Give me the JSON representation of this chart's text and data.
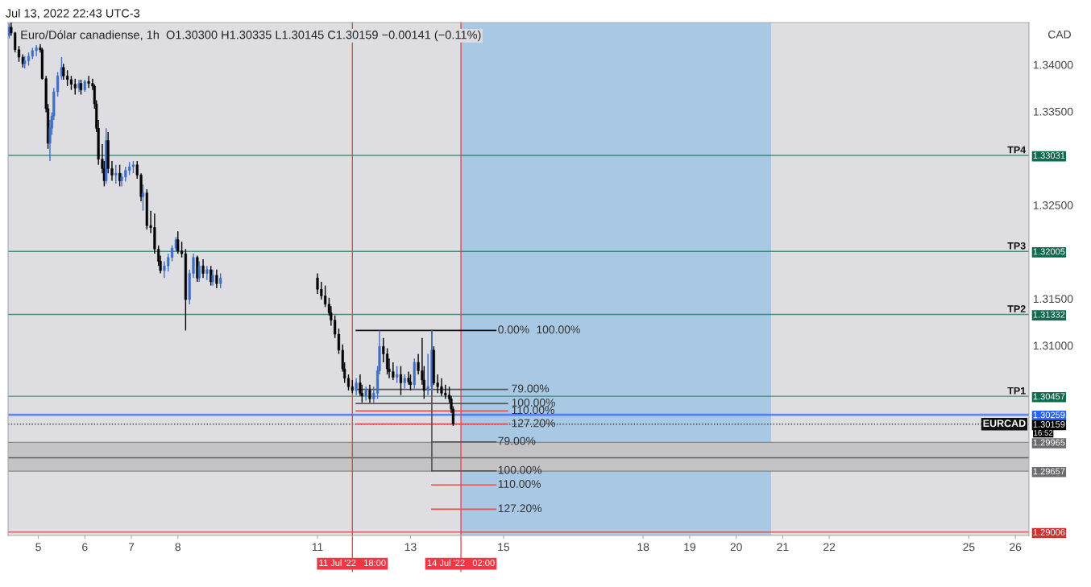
{
  "chart_data": {
    "type": "candlestick",
    "title": "Euro/Dólar canadiense, 1h",
    "subtitle": "O1.30300 H1.30335 L1.30145 C1.30159 −0.00141 (−0.11%)",
    "ylabel": "CAD",
    "xlim": [
      "2022-07-04T08:24",
      "2022-07-26T07:00"
    ],
    "ylim": [
      1.2897,
      1.3445
    ],
    "xticks": [
      {
        "value": "2022-07-05",
        "label": "5"
      },
      {
        "value": "2022-07-06",
        "label": "6"
      },
      {
        "value": "2022-07-07",
        "label": "7"
      },
      {
        "value": "2022-07-08",
        "label": "8"
      },
      {
        "value": "2022-07-11",
        "label": "11"
      },
      {
        "value": "2022-07-13",
        "label": "13"
      },
      {
        "value": "2022-07-15",
        "label": "15"
      },
      {
        "value": "2022-07-18",
        "label": "18"
      },
      {
        "value": "2022-07-19",
        "label": "19"
      },
      {
        "value": "2022-07-20",
        "label": "20"
      },
      {
        "value": "2022-07-21",
        "label": "21"
      },
      {
        "value": "2022-07-22",
        "label": "22"
      },
      {
        "value": "2022-07-25",
        "label": "25"
      },
      {
        "value": "2022-07-26",
        "label": "26"
      }
    ],
    "yticks": [
      {
        "value": 1.33031,
        "label": "1.33031"
      },
      {
        "value": 1.32005,
        "label": "1.32005"
      },
      {
        "value": 1.31332,
        "label": "1.31332"
      },
      {
        "value": 1.30457,
        "label": "1.30457"
      },
      {
        "value": 1.30259,
        "label": "1.30259"
      },
      {
        "value": 1.30159,
        "label": "1.30159"
      },
      {
        "value": 1.29965,
        "label": "1.29965"
      },
      {
        "value": 1.29657,
        "label": "1.29657"
      },
      {
        "value": 1.29006,
        "label": "1.29006"
      },
      {
        "value": 1.31,
        "label": "1.31000"
      },
      {
        "value": 1.315,
        "label": "1.31500"
      },
      {
        "value": 1.325,
        "label": "1.32500"
      },
      {
        "value": 1.335,
        "label": "1.33500"
      },
      {
        "value": 1.34,
        "label": "1.34000"
      }
    ],
    "grid": false,
    "x": [
      "2022-07-04T09:00",
      "2022-07-04T10:00",
      "2022-07-04T12:00",
      "2022-07-04T14:00",
      "2022-07-04T16:00",
      "2022-07-04T17:00",
      "2022-07-04T19:00",
      "2022-07-04T21:00",
      "2022-07-04T23:00",
      "2022-07-05T01:00",
      "2022-07-05T02:00",
      "2022-07-05T04:00",
      "2022-07-05T05:00",
      "2022-07-05T06:00",
      "2022-07-05T07:00",
      "2022-07-05T08:00",
      "2022-07-05T10:00",
      "2022-07-05T12:00",
      "2022-07-05T13:00",
      "2022-07-05T15:00",
      "2022-07-05T17:00",
      "2022-07-05T19:00",
      "2022-07-05T21:00",
      "2022-07-05T22:00",
      "2022-07-06T00:00",
      "2022-07-06T02:00",
      "2022-07-06T04:00",
      "2022-07-06T05:00",
      "2022-07-06T06:00",
      "2022-07-06T07:00",
      "2022-07-06T09:00",
      "2022-07-06T10:00",
      "2022-07-06T11:00",
      "2022-07-06T12:00",
      "2022-07-06T14:00",
      "2022-07-06T16:00",
      "2022-07-06T18:00",
      "2022-07-06T19:00",
      "2022-07-06T21:00",
      "2022-07-06T23:00",
      "2022-07-07T01:00",
      "2022-07-07T03:00",
      "2022-07-07T05:00",
      "2022-07-07T06:00",
      "2022-07-07T08:00",
      "2022-07-07T10:00",
      "2022-07-07T12:00",
      "2022-07-07T14:00",
      "2022-07-07T15:00",
      "2022-07-07T17:00",
      "2022-07-07T19:00",
      "2022-07-07T21:00",
      "2022-07-07T23:00",
      "2022-07-08T00:00",
      "2022-07-08T02:00",
      "2022-07-08T04:00",
      "2022-07-08T06:00",
      "2022-07-08T08:00",
      "2022-07-08T10:00",
      "2022-07-08T11:00",
      "2022-07-08T13:00",
      "2022-07-08T15:00",
      "2022-07-08T17:00",
      "2022-07-08T18:00",
      "2022-07-08T20:00",
      "2022-07-08T22:00",
      "2022-07-11T00:00",
      "2022-07-11T02:00",
      "2022-07-11T04:00",
      "2022-07-11T06:00",
      "2022-07-11T07:00",
      "2022-07-11T09:00",
      "2022-07-11T11:00",
      "2022-07-11T13:00",
      "2022-07-11T14:00",
      "2022-07-11T16:00",
      "2022-07-11T18:00",
      "2022-07-11T20:00",
      "2022-07-11T22:00",
      "2022-07-11T23:00",
      "2022-07-12T01:00",
      "2022-07-12T03:00",
      "2022-07-12T05:00",
      "2022-07-12T07:00",
      "2022-07-12T08:00",
      "2022-07-12T10:00",
      "2022-07-12T12:00",
      "2022-07-12T13:00",
      "2022-07-12T15:00",
      "2022-07-12T17:00",
      "2022-07-12T19:00",
      "2022-07-12T21:00",
      "2022-07-12T23:00",
      "2022-07-13T00:00",
      "2022-07-13T02:00",
      "2022-07-13T04:00",
      "2022-07-13T06:00",
      "2022-07-13T07:00",
      "2022-07-13T09:00",
      "2022-07-13T11:00",
      "2022-07-13T12:00",
      "2022-07-13T14:00",
      "2022-07-13T16:00",
      "2022-07-13T18:00",
      "2022-07-13T20:00",
      "2022-07-13T21:00",
      "2022-07-13T22:00"
    ],
    "ohlc": [
      [
        1.3431,
        1.3444,
        1.3428,
        1.344
      ],
      [
        1.344,
        1.3446,
        1.3431,
        1.3434
      ],
      [
        1.3434,
        1.3435,
        1.3413,
        1.3416
      ],
      [
        1.3416,
        1.342,
        1.3403,
        1.3408
      ],
      [
        1.3408,
        1.3411,
        1.3397,
        1.3401
      ],
      [
        1.3401,
        1.3409,
        1.3396,
        1.3404
      ],
      [
        1.3404,
        1.3413,
        1.3399,
        1.3409
      ],
      [
        1.3409,
        1.3418,
        1.3406,
        1.3415
      ],
      [
        1.3415,
        1.3421,
        1.3409,
        1.3418
      ],
      [
        1.3418,
        1.3422,
        1.3413,
        1.3416
      ],
      [
        1.3416,
        1.3418,
        1.3384,
        1.3385
      ],
      [
        1.3385,
        1.3388,
        1.3349,
        1.3353
      ],
      [
        1.3353,
        1.3358,
        1.331,
        1.3316
      ],
      [
        1.3316,
        1.3341,
        1.3297,
        1.3332
      ],
      [
        1.3332,
        1.3349,
        1.3325,
        1.3345
      ],
      [
        1.3345,
        1.3375,
        1.3341,
        1.3371
      ],
      [
        1.3371,
        1.3392,
        1.3366,
        1.3388
      ],
      [
        1.3388,
        1.3408,
        1.3384,
        1.3397
      ],
      [
        1.3397,
        1.3401,
        1.3384,
        1.3388
      ],
      [
        1.3388,
        1.3394,
        1.3377,
        1.3384
      ],
      [
        1.3384,
        1.3388,
        1.3373,
        1.3379
      ],
      [
        1.3379,
        1.3385,
        1.3368,
        1.3375
      ],
      [
        1.3375,
        1.3384,
        1.3371,
        1.338
      ],
      [
        1.338,
        1.3384,
        1.3368,
        1.3373
      ],
      [
        1.3373,
        1.3384,
        1.3371,
        1.3382
      ],
      [
        1.3382,
        1.3388,
        1.3375,
        1.338
      ],
      [
        1.338,
        1.3385,
        1.3373,
        1.3377
      ],
      [
        1.3377,
        1.3379,
        1.3353,
        1.3358
      ],
      [
        1.3358,
        1.3362,
        1.3328,
        1.3332
      ],
      [
        1.3332,
        1.3341,
        1.3293,
        1.3299
      ],
      [
        1.3299,
        1.3315,
        1.3284,
        1.3289
      ],
      [
        1.3289,
        1.3297,
        1.327,
        1.3276
      ],
      [
        1.3276,
        1.3332,
        1.3273,
        1.3319
      ],
      [
        1.3319,
        1.3328,
        1.3284,
        1.3289
      ],
      [
        1.3289,
        1.3297,
        1.3276,
        1.3282
      ],
      [
        1.3282,
        1.3293,
        1.3273,
        1.3284
      ],
      [
        1.3284,
        1.3293,
        1.327,
        1.3276
      ],
      [
        1.3276,
        1.3284,
        1.327,
        1.328
      ],
      [
        1.328,
        1.3291,
        1.3275,
        1.3287
      ],
      [
        1.3287,
        1.3296,
        1.3282,
        1.3291
      ],
      [
        1.3291,
        1.3297,
        1.3284,
        1.3293
      ],
      [
        1.3293,
        1.3297,
        1.3278,
        1.3282
      ],
      [
        1.3282,
        1.3284,
        1.3254,
        1.3259
      ],
      [
        1.3259,
        1.3272,
        1.3244,
        1.3263
      ],
      [
        1.3263,
        1.3267,
        1.3224,
        1.3228
      ],
      [
        1.3228,
        1.3244,
        1.322,
        1.3226
      ],
      [
        1.3226,
        1.3241,
        1.3198,
        1.3203
      ],
      [
        1.3203,
        1.3207,
        1.3185,
        1.319
      ],
      [
        1.319,
        1.3196,
        1.3177,
        1.318
      ],
      [
        1.318,
        1.319,
        1.3172,
        1.3185
      ],
      [
        1.3185,
        1.3198,
        1.3179,
        1.3194
      ],
      [
        1.3194,
        1.3207,
        1.319,
        1.3204
      ],
      [
        1.3204,
        1.3216,
        1.3201,
        1.3213
      ],
      [
        1.3213,
        1.3222,
        1.3198,
        1.3201
      ],
      [
        1.3201,
        1.3211,
        1.3194,
        1.3198
      ],
      [
        1.3198,
        1.3203,
        1.3116,
        1.3149
      ],
      [
        1.3149,
        1.3181,
        1.3144,
        1.3177
      ],
      [
        1.3177,
        1.3198,
        1.3172,
        1.3194
      ],
      [
        1.3194,
        1.3196,
        1.3168,
        1.3172
      ],
      [
        1.3172,
        1.319,
        1.3168,
        1.3185
      ],
      [
        1.3185,
        1.3192,
        1.3172,
        1.3177
      ],
      [
        1.3177,
        1.3185,
        1.317,
        1.3181
      ],
      [
        1.3181,
        1.3185,
        1.3164,
        1.3168
      ],
      [
        1.3168,
        1.3181,
        1.3164,
        1.3175
      ],
      [
        1.3175,
        1.3181,
        1.3161,
        1.3166
      ],
      [
        1.3166,
        1.3177,
        1.3161,
        1.3172
      ],
      [
        1.3172,
        1.3177,
        1.3155,
        1.316
      ],
      [
        1.316,
        1.3168,
        1.3149,
        1.3153
      ],
      [
        1.3153,
        1.3164,
        1.3141,
        1.3144
      ],
      [
        1.3144,
        1.3151,
        1.3132,
        1.3135
      ],
      [
        1.3135,
        1.3142,
        1.3121,
        1.3127
      ],
      [
        1.3127,
        1.3132,
        1.3108,
        1.3112
      ],
      [
        1.3112,
        1.3118,
        1.3091,
        1.3095
      ],
      [
        1.3095,
        1.3101,
        1.3072,
        1.3075
      ],
      [
        1.3075,
        1.3082,
        1.306,
        1.3065
      ],
      [
        1.3065,
        1.3069,
        1.3052,
        1.3056
      ],
      [
        1.3056,
        1.3063,
        1.3049,
        1.3052
      ],
      [
        1.3052,
        1.3065,
        1.3047,
        1.306
      ],
      [
        1.306,
        1.3069,
        1.3046,
        1.3049
      ],
      [
        1.3049,
        1.3058,
        1.3039,
        1.3046
      ],
      [
        1.3046,
        1.3056,
        1.3041,
        1.3052
      ],
      [
        1.3052,
        1.3058,
        1.3039,
        1.3043
      ],
      [
        1.3043,
        1.3056,
        1.3039,
        1.3049
      ],
      [
        1.3049,
        1.3078,
        1.3043,
        1.3073
      ],
      [
        1.3073,
        1.3116,
        1.3069,
        1.3099
      ],
      [
        1.3099,
        1.3108,
        1.3082,
        1.3091
      ],
      [
        1.3091,
        1.3097,
        1.3069,
        1.3075
      ],
      [
        1.3075,
        1.3086,
        1.3065,
        1.3072
      ],
      [
        1.3072,
        1.3082,
        1.3063,
        1.3066
      ],
      [
        1.3066,
        1.3078,
        1.306,
        1.3069
      ],
      [
        1.3069,
        1.3078,
        1.3047,
        1.306
      ],
      [
        1.306,
        1.3069,
        1.3054,
        1.3065
      ],
      [
        1.3065,
        1.3072,
        1.3058,
        1.3061
      ],
      [
        1.3061,
        1.3069,
        1.3052,
        1.3058
      ],
      [
        1.3058,
        1.3086,
        1.3054,
        1.3082
      ],
      [
        1.3082,
        1.3091,
        1.3069,
        1.3073
      ],
      [
        1.3073,
        1.3108,
        1.3058,
        1.3063
      ],
      [
        1.3063,
        1.3078,
        1.3043,
        1.3052
      ],
      [
        1.3052,
        1.3091,
        1.3047,
        1.3056
      ],
      [
        1.3056,
        1.3115,
        1.3052,
        1.3095
      ],
      [
        1.3095,
        1.3099,
        1.3058,
        1.306
      ],
      [
        1.306,
        1.3069,
        1.3049,
        1.3056
      ],
      [
        1.3056,
        1.3065,
        1.3046,
        1.3049
      ],
      [
        1.3049,
        1.3058,
        1.3043,
        1.3047
      ],
      [
        1.3047,
        1.3056,
        1.3039,
        1.3043
      ],
      [
        1.3043,
        1.3046,
        1.3028,
        1.3032
      ],
      [
        1.3032,
        1.3035,
        1.3014,
        1.3016
      ]
    ],
    "series": [
      {
        "type": "line",
        "color": "#111111",
        "x": [
          "2022-07-11T20:00",
          "2022-07-14T20:00"
        ],
        "values": [
          1.3116,
          1.3116
        ]
      },
      {
        "type": "line",
        "color": "#555555",
        "x": [
          "2022-07-11T20:00",
          "2022-07-15T02:00"
        ],
        "values": [
          1.3053,
          1.3053
        ]
      },
      {
        "type": "line",
        "color": "#555555",
        "x": [
          "2022-07-11T20:00",
          "2022-07-15T02:00"
        ],
        "values": [
          1.3038,
          1.3038
        ]
      },
      {
        "type": "line",
        "color": "#e05252",
        "x": [
          "2022-07-11T20:00",
          "2022-07-15T02:00"
        ],
        "values": [
          1.303,
          1.303
        ]
      },
      {
        "type": "line",
        "color": "#e05252",
        "x": [
          "2022-07-11T20:00",
          "2022-07-15T02:00"
        ],
        "values": [
          1.3016,
          1.3016
        ]
      },
      {
        "type": "line",
        "color": "#555555",
        "x": [
          "2022-07-13T11:00",
          "2022-07-13T11:00"
        ],
        "values": [
          1.3116,
          1.2966
        ]
      },
      {
        "type": "line",
        "color": "#555555",
        "x": [
          "2022-07-13T11:00",
          "2022-07-14T20:00"
        ],
        "values": [
          1.2997,
          1.2997
        ]
      },
      {
        "type": "line",
        "color": "#555555",
        "x": [
          "2022-07-13T11:00",
          "2022-07-14T20:00"
        ],
        "values": [
          1.2966,
          1.2966
        ]
      },
      {
        "type": "line",
        "color": "#e05252",
        "x": [
          "2022-07-13T11:00",
          "2022-07-14T20:00"
        ],
        "values": [
          1.2951,
          1.2951
        ]
      },
      {
        "type": "line",
        "color": "#e05252",
        "x": [
          "2022-07-13T11:00",
          "2022-07-14T20:00"
        ],
        "values": [
          1.2925,
          1.2925
        ]
      }
    ],
    "bands": [
      {
        "axis": "x",
        "from": "2022-07-14T02:00",
        "to": "2022-07-20T18:00",
        "color": "#a9c8e3"
      },
      {
        "axis": "y",
        "from": 1.29657,
        "to": 1.29965,
        "color": "#c4c4c6"
      }
    ],
    "ref_lines": [
      {
        "axis": "y",
        "value": 1.33031,
        "label": "TP4",
        "color": "#0e6b4e"
      },
      {
        "axis": "y",
        "value": 1.32005,
        "label": "TP3",
        "color": "#0e6b4e"
      },
      {
        "axis": "y",
        "value": 1.31332,
        "label": "TP2",
        "color": "#0e6b4e"
      },
      {
        "axis": "y",
        "value": 1.30457,
        "label": "TP1",
        "color": "#0e6b4e"
      },
      {
        "axis": "y",
        "value": 1.30259,
        "label": null,
        "color": "#2962ff"
      },
      {
        "axis": "y",
        "value": 1.30159,
        "label": "EURCAD",
        "color": "#000000",
        "line_style": "dotted"
      },
      {
        "axis": "y",
        "value": 1.29965,
        "label": null,
        "color": "#6b6b6e"
      },
      {
        "axis": "y",
        "value": 1.29657,
        "label": null,
        "color": "#6b6b6e"
      },
      {
        "axis": "y",
        "value": 1.298,
        "label": null,
        "color": "#333333"
      },
      {
        "axis": "y",
        "value": 1.29006,
        "label": null,
        "color": "#d32f2f"
      },
      {
        "axis": "x",
        "value": "2022-07-11T18:00",
        "label": "11 Jul '22   18:00",
        "color": "#f23645"
      },
      {
        "axis": "x",
        "value": "2022-07-14T02:00",
        "label": "14 Jul '22   02:00",
        "color": "#f23645"
      }
    ],
    "annotations": [
      "Jul 13, 2022 22:43 UTC-3",
      "16:52",
      "100.00%",
      {
        "text": "0.00%",
        "x": "2022-07-14T21:00",
        "y": 1.3116
      },
      {
        "text": "79.00%",
        "x": "2022-07-15T04:00",
        "y": 1.3053
      },
      {
        "text": "100.00%",
        "x": "2022-07-15T04:00",
        "y": 1.3038
      },
      {
        "text": "110.00%",
        "x": "2022-07-15T04:00",
        "y": 1.303
      },
      {
        "text": "127.20%",
        "x": "2022-07-15T04:00",
        "y": 1.3016
      },
      {
        "text": "79.00%",
        "x": "2022-07-14T21:00",
        "y": 1.2997
      },
      {
        "text": "100.00%",
        "x": "2022-07-14T21:00",
        "y": 1.2966
      },
      {
        "text": "110.00%",
        "x": "2022-07-14T21:00",
        "y": 1.2951
      },
      {
        "text": "127.20%",
        "x": "2022-07-14T21:00",
        "y": 1.2925
      }
    ]
  }
}
